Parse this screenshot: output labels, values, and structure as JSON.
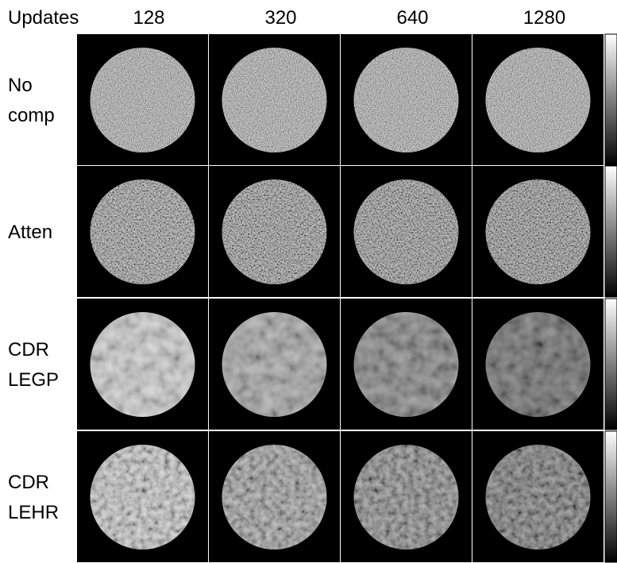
{
  "header": {
    "label": "Updates",
    "columns": [
      "128",
      "320",
      "640",
      "1280"
    ]
  },
  "rows": [
    {
      "label": [
        "No",
        "comp"
      ]
    },
    {
      "label": [
        "Atten"
      ]
    },
    {
      "label": [
        "CDR",
        "LEGP"
      ]
    },
    {
      "label": [
        "CDR",
        "LEHR"
      ]
    }
  ]
}
